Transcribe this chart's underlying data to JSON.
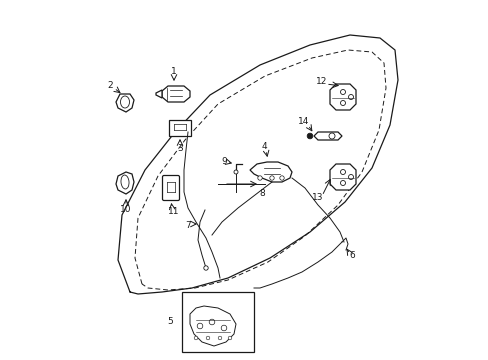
{
  "bg_color": "#ffffff",
  "line_color": "#1a1a1a",
  "fig_width": 4.89,
  "fig_height": 3.6,
  "dpi": 100,
  "door_outer": {
    "x": [
      1.3,
      1.18,
      1.22,
      1.45,
      1.75,
      2.1,
      2.6,
      3.1,
      3.5,
      3.8,
      3.95,
      3.98,
      3.9,
      3.72,
      3.45,
      3.1,
      2.7,
      2.28,
      1.92,
      1.62,
      1.38,
      1.3
    ],
    "y": [
      0.68,
      1.0,
      1.45,
      1.9,
      2.28,
      2.65,
      2.95,
      3.15,
      3.25,
      3.22,
      3.1,
      2.8,
      2.35,
      1.92,
      1.58,
      1.28,
      1.02,
      0.82,
      0.72,
      0.68,
      0.66,
      0.68
    ]
  },
  "door_inner": {
    "x": [
      1.42,
      1.35,
      1.38,
      1.58,
      1.85,
      2.18,
      2.65,
      3.12,
      3.48,
      3.72,
      3.84,
      3.86,
      3.79,
      3.62,
      3.38,
      3.05,
      2.68,
      2.28,
      1.95,
      1.68,
      1.48,
      1.42
    ],
    "y": [
      0.76,
      1.02,
      1.42,
      1.84,
      2.2,
      2.56,
      2.84,
      3.02,
      3.1,
      3.08,
      2.97,
      2.72,
      2.3,
      1.88,
      1.55,
      1.24,
      0.98,
      0.8,
      0.72,
      0.7,
      0.72,
      0.76
    ]
  }
}
